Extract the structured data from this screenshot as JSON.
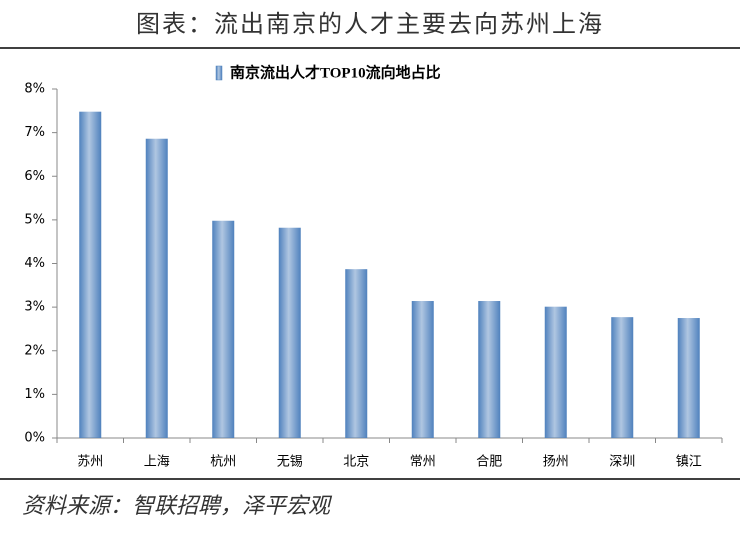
{
  "chart_data": {
    "type": "bar",
    "title": "图表：流出南京的人才主要去向苏州上海",
    "source": "资料来源：智联招聘，泽平宏观",
    "categories": [
      "苏州",
      "上海",
      "杭州",
      "无锡",
      "北京",
      "常州",
      "合肥",
      "扬州",
      "深圳",
      "镇江"
    ],
    "series": [
      {
        "name": "南京流出人才TOP10流向地占比",
        "color": "#4f81bd",
        "values": [
          7.48,
          6.86,
          4.98,
          4.82,
          3.87,
          3.14,
          3.14,
          3.01,
          2.77,
          2.75
        ]
      }
    ],
    "ylim": [
      0,
      8
    ],
    "yticks": [
      {
        "value": 0,
        "label": "0%"
      },
      {
        "value": 1,
        "label": "1%"
      },
      {
        "value": 2,
        "label": "2%"
      },
      {
        "value": 3,
        "label": "3%"
      },
      {
        "value": 4,
        "label": "4%"
      },
      {
        "value": 5,
        "label": "5%"
      },
      {
        "value": 6,
        "label": "6%"
      },
      {
        "value": 7,
        "label": "7%"
      },
      {
        "value": 8,
        "label": "8%"
      }
    ],
    "grid": false
  }
}
